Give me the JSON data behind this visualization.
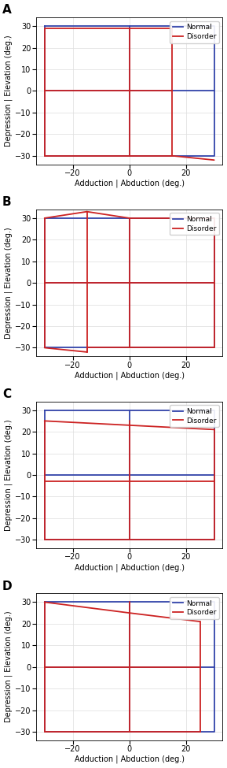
{
  "panels": [
    {
      "label": "A",
      "normal_segs": [
        {
          "x": [
            -30,
            30,
            30,
            -30,
            -30
          ],
          "y": [
            30,
            30,
            -30,
            -30,
            30
          ]
        },
        {
          "x": [
            -30,
            30
          ],
          "y": [
            0,
            0
          ]
        },
        {
          "x": [
            0,
            0
          ],
          "y": [
            30,
            -30
          ]
        }
      ],
      "disorder_segs": [
        {
          "x": [
            -30,
            15
          ],
          "y": [
            29,
            29
          ]
        },
        {
          "x": [
            15,
            15
          ],
          "y": [
            29,
            -30
          ]
        },
        {
          "x": [
            15,
            30
          ],
          "y": [
            -30,
            -32
          ]
        },
        {
          "x": [
            -30,
            15
          ],
          "y": [
            -30,
            -30
          ]
        },
        {
          "x": [
            -30,
            -30
          ],
          "y": [
            -30,
            29
          ]
        },
        {
          "x": [
            -30,
            15
          ],
          "y": [
            0,
            0
          ]
        },
        {
          "x": [
            0,
            0
          ],
          "y": [
            29,
            -30
          ]
        }
      ]
    },
    {
      "label": "B",
      "normal_segs": [
        {
          "x": [
            -30,
            30,
            30,
            -30,
            -30
          ],
          "y": [
            30,
            30,
            -30,
            -30,
            30
          ]
        },
        {
          "x": [
            -30,
            30
          ],
          "y": [
            0,
            0
          ]
        },
        {
          "x": [
            0,
            0
          ],
          "y": [
            30,
            -30
          ]
        }
      ],
      "disorder_segs": [
        {
          "x": [
            -15,
            0
          ],
          "y": [
            33,
            30
          ]
        },
        {
          "x": [
            -15,
            -30
          ],
          "y": [
            33,
            30
          ]
        },
        {
          "x": [
            0,
            30
          ],
          "y": [
            30,
            30
          ]
        },
        {
          "x": [
            30,
            30
          ],
          "y": [
            30,
            -30
          ]
        },
        {
          "x": [
            30,
            0
          ],
          "y": [
            -30,
            -30
          ]
        },
        {
          "x": [
            0,
            -15
          ],
          "y": [
            -30,
            -30
          ]
        },
        {
          "x": [
            -15,
            -15
          ],
          "y": [
            -30,
            -32
          ]
        },
        {
          "x": [
            -15,
            -30
          ],
          "y": [
            -32,
            -30
          ]
        },
        {
          "x": [
            -30,
            -30
          ],
          "y": [
            -30,
            30
          ]
        },
        {
          "x": [
            -30,
            30
          ],
          "y": [
            0,
            0
          ]
        },
        {
          "x": [
            -15,
            -15
          ],
          "y": [
            33,
            -32
          ]
        },
        {
          "x": [
            0,
            0
          ],
          "y": [
            30,
            -30
          ]
        }
      ]
    },
    {
      "label": "C",
      "normal_segs": [
        {
          "x": [
            -30,
            30,
            30,
            -30,
            -30
          ],
          "y": [
            30,
            30,
            -30,
            -30,
            30
          ]
        },
        {
          "x": [
            -30,
            30
          ],
          "y": [
            0,
            0
          ]
        },
        {
          "x": [
            0,
            0
          ],
          "y": [
            30,
            -30
          ]
        }
      ],
      "disorder_segs": [
        {
          "x": [
            -30,
            0
          ],
          "y": [
            25,
            23
          ]
        },
        {
          "x": [
            0,
            30
          ],
          "y": [
            23,
            21
          ]
        },
        {
          "x": [
            30,
            30
          ],
          "y": [
            21,
            -30
          ]
        },
        {
          "x": [
            30,
            -30
          ],
          "y": [
            -30,
            -30
          ]
        },
        {
          "x": [
            -30,
            -30
          ],
          "y": [
            -30,
            25
          ]
        },
        {
          "x": [
            -30,
            30
          ],
          "y": [
            -3,
            -3
          ]
        },
        {
          "x": [
            0,
            0
          ],
          "y": [
            25,
            -30
          ]
        }
      ]
    },
    {
      "label": "D",
      "normal_segs": [
        {
          "x": [
            -30,
            30,
            30,
            -30,
            -30
          ],
          "y": [
            30,
            30,
            -30,
            -30,
            30
          ]
        },
        {
          "x": [
            -30,
            30
          ],
          "y": [
            0,
            0
          ]
        },
        {
          "x": [
            0,
            0
          ],
          "y": [
            30,
            -30
          ]
        }
      ],
      "disorder_segs": [
        {
          "x": [
            -30,
            0
          ],
          "y": [
            30,
            25
          ]
        },
        {
          "x": [
            0,
            25
          ],
          "y": [
            25,
            21
          ]
        },
        {
          "x": [
            25,
            25
          ],
          "y": [
            21,
            -30
          ]
        },
        {
          "x": [
            25,
            -30
          ],
          "y": [
            -30,
            -30
          ]
        },
        {
          "x": [
            -30,
            -30
          ],
          "y": [
            -30,
            30
          ]
        },
        {
          "x": [
            -30,
            25
          ],
          "y": [
            0,
            0
          ]
        },
        {
          "x": [
            0,
            0
          ],
          "y": [
            30,
            -30
          ]
        }
      ]
    }
  ],
  "normal_color": "#3344aa",
  "disorder_color": "#cc2222",
  "xlim": [
    -33,
    33
  ],
  "ylim": [
    -34,
    34
  ],
  "xticks": [
    -20,
    0,
    20
  ],
  "yticks": [
    -30,
    -20,
    -10,
    0,
    10,
    20,
    30
  ],
  "xlabel": "Adduction | Abduction (deg.)",
  "ylabel": "Depression | Elevation (deg.)",
  "figsize": [
    2.89,
    9.75
  ],
  "dpi": 100
}
